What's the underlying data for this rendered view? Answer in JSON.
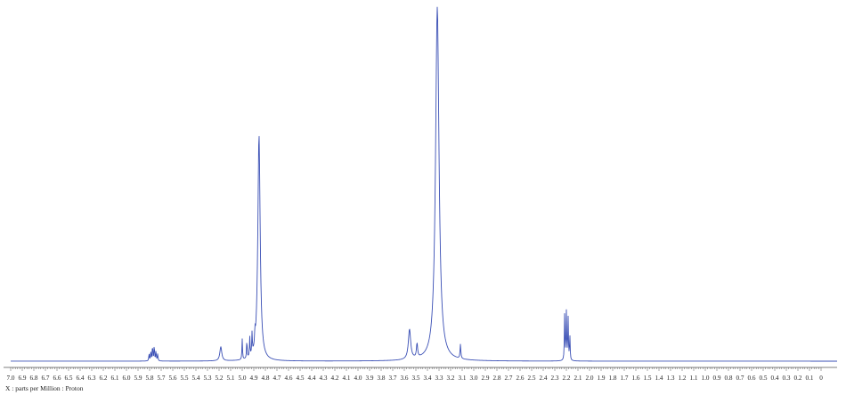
{
  "chart_data": {
    "type": "line",
    "title": "",
    "xlabel": "X : parts per Million : Proton",
    "ylabel": "",
    "x_reversed": true,
    "xlim": [
      7.0,
      0.0
    ],
    "ylim": [
      0,
      1.0
    ],
    "grid": false,
    "line_color": "#3a4fb5",
    "tick_labels": [
      "7.0",
      "6.9",
      "6.8",
      "6.7",
      "6.6",
      "6.5",
      "6.4",
      "6.3",
      "6.2",
      "6.1",
      "6.0",
      "5.9",
      "5.8",
      "5.7",
      "5.6",
      "5.5",
      "5.4",
      "5.3",
      "5.2",
      "5.1",
      "5.0",
      "4.9",
      "4.8",
      "4.7",
      "4.6",
      "4.5",
      "4.4",
      "4.3",
      "4.2",
      "4.1",
      "4.0",
      "3.9",
      "3.8",
      "3.7",
      "3.6",
      "3.5",
      "3.4",
      "3.3",
      "3.2",
      "3.1",
      "3.0",
      "2.9",
      "2.8",
      "2.7",
      "2.6",
      "2.5",
      "2.4",
      "2.3",
      "2.2",
      "2.1",
      "2.0",
      "1.9",
      "1.8",
      "1.7",
      "1.6",
      "1.5",
      "1.4",
      "1.3",
      "1.2",
      "1.1",
      "1.0",
      "0.9",
      "0.8",
      "0.7",
      "0.6",
      "0.5",
      "0.4",
      "0.3",
      "0.2",
      "0.1",
      "0"
    ],
    "series": [
      {
        "peaks": [
          {
            "ppm": 5.805,
            "height": 0.02,
            "width": 0.003
          },
          {
            "ppm": 5.79,
            "height": 0.028,
            "width": 0.003
          },
          {
            "ppm": 5.775,
            "height": 0.045,
            "width": 0.003
          },
          {
            "ppm": 5.76,
            "height": 0.045,
            "width": 0.003
          },
          {
            "ppm": 5.745,
            "height": 0.028,
            "width": 0.003
          },
          {
            "ppm": 5.73,
            "height": 0.02,
            "width": 0.003
          },
          {
            "ppm": 5.185,
            "height": 0.04,
            "width": 0.01
          },
          {
            "ppm": 5.0,
            "height": 0.058,
            "width": 0.003
          },
          {
            "ppm": 4.96,
            "height": 0.052,
            "width": 0.003
          },
          {
            "ppm": 4.935,
            "height": 0.055,
            "width": 0.003
          },
          {
            "ppm": 4.915,
            "height": 0.06,
            "width": 0.003
          },
          {
            "ppm": 4.89,
            "height": 0.04,
            "width": 0.003
          },
          {
            "ppm": 4.855,
            "height": 0.64,
            "width": 0.012
          },
          {
            "ppm": 3.555,
            "height": 0.085,
            "width": 0.012
          },
          {
            "ppm": 3.49,
            "height": 0.04,
            "width": 0.006
          },
          {
            "ppm": 3.315,
            "height": 1.0,
            "width": 0.018
          },
          {
            "ppm": 3.115,
            "height": 0.04,
            "width": 0.004
          },
          {
            "ppm": 2.215,
            "height": 0.13,
            "width": 0.003
          },
          {
            "ppm": 2.2,
            "height": 0.135,
            "width": 0.003
          },
          {
            "ppm": 2.185,
            "height": 0.12,
            "width": 0.003
          },
          {
            "ppm": 2.17,
            "height": 0.07,
            "width": 0.003
          }
        ]
      }
    ]
  }
}
